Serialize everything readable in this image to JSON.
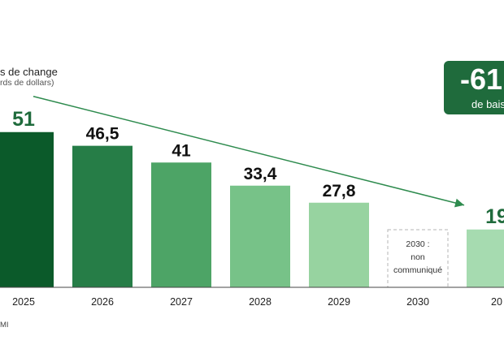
{
  "chart_data": {
    "type": "bar",
    "title": "s de change",
    "subtitle": "rds de dollars)",
    "categories": [
      "2025",
      "2026",
      "2027",
      "2028",
      "2029",
      "2030",
      "20"
    ],
    "values": [
      51,
      46.5,
      41,
      33.4,
      27.8,
      null,
      19
    ],
    "value_labels": [
      "51",
      "46,5",
      "41",
      "33,4",
      "27,8",
      "",
      "19"
    ],
    "missing_note": [
      "2030 :",
      "non",
      "communiqué"
    ],
    "highlight": {
      "value": "-61",
      "label": "de bais"
    },
    "source": "MI",
    "bar_colors": [
      "#0b5a2a",
      "#267d47",
      "#4da466",
      "#77c288",
      "#97d3a0",
      "#ffffff",
      "#a6dbb0"
    ],
    "trend_color": "#2e8b4e",
    "grid": false,
    "legend": "none"
  }
}
